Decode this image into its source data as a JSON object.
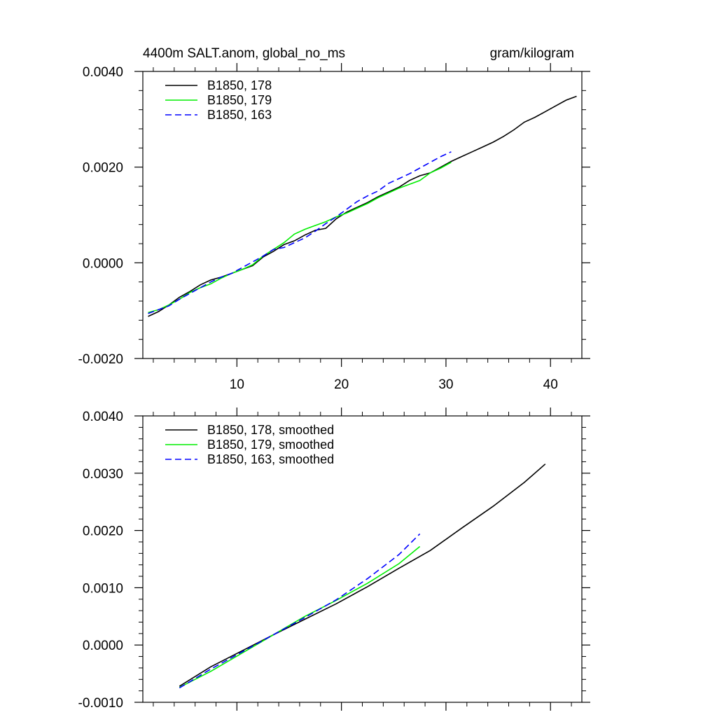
{
  "title": "4400m SALT.anom, global_no_ms",
  "units": "gram/kilogram",
  "colors": {
    "s178": "#000000",
    "s179": "#00ee00",
    "s163": "#0000ff"
  },
  "chart_data": [
    {
      "type": "line",
      "title": "4400m SALT.anom, global_no_ms",
      "units": "gram/kilogram",
      "xlim": [
        1,
        43
      ],
      "ylim": [
        -0.002,
        0.004
      ],
      "xticks": [
        10,
        20,
        30,
        40
      ],
      "xtick_labels": [
        "10",
        "20",
        "30",
        "40"
      ],
      "yticks": [
        -0.002,
        0.0,
        0.002,
        0.004
      ],
      "ytick_labels": [
        "-0.0020",
        "0.0000",
        "0.0020",
        "0.0040"
      ],
      "grid": false,
      "legend_position": "top-left",
      "series": [
        {
          "name": "B1850, 178",
          "color": "#000000",
          "dash": "solid",
          "x": [
            1.5,
            2.5,
            3.5,
            4.5,
            5.5,
            6.5,
            7.5,
            8.5,
            9.5,
            10.5,
            11.5,
            12.5,
            13.5,
            14.5,
            15.5,
            16.5,
            17.5,
            18.5,
            19.5,
            20.5,
            21.5,
            22.5,
            23.5,
            24.5,
            25.5,
            26.5,
            27.5,
            28.5,
            29.5,
            30.5,
            31.5,
            32.5,
            33.5,
            34.5,
            35.5,
            36.5,
            37.5,
            38.5,
            39.5,
            40.5,
            41.5,
            42.5
          ],
          "y": [
            -0.00112,
            -0.00102,
            -0.00088,
            -0.00072,
            -0.0006,
            -0.00046,
            -0.00036,
            -0.0003,
            -0.00022,
            -0.00014,
            -6e-05,
            0.00012,
            0.00024,
            0.00038,
            0.00046,
            0.00058,
            0.00068,
            0.00072,
            0.00092,
            0.00106,
            0.00116,
            0.00126,
            0.00138,
            0.00148,
            0.00158,
            0.00172,
            0.00182,
            0.00188,
            0.002,
            0.00212,
            0.00222,
            0.00232,
            0.00242,
            0.00252,
            0.00264,
            0.00278,
            0.00294,
            0.00304,
            0.00316,
            0.00328,
            0.0034,
            0.00348
          ]
        },
        {
          "name": "B1850, 179",
          "color": "#00ee00",
          "dash": "solid",
          "x": [
            1.5,
            2.5,
            3.5,
            4.5,
            5.5,
            6.5,
            7.5,
            8.5,
            9.5,
            10.5,
            11.5,
            12.5,
            13.5,
            14.5,
            15.5,
            16.5,
            17.5,
            18.5,
            19.5,
            20.5,
            21.5,
            22.5,
            23.5,
            24.5,
            25.5,
            26.5,
            27.5,
            28.5,
            29.5,
            30.5
          ],
          "y": [
            -0.00104,
            -0.00098,
            -0.00088,
            -0.00076,
            -0.00062,
            -0.00052,
            -0.00044,
            -0.00032,
            -0.00022,
            -0.00014,
            -4e-05,
            0.00014,
            0.00028,
            0.00042,
            0.0006,
            0.0007,
            0.00078,
            0.00086,
            0.00096,
            0.00104,
            0.00114,
            0.00124,
            0.00136,
            0.00146,
            0.00156,
            0.00164,
            0.00172,
            0.00188,
            0.00198,
            0.0021
          ]
        },
        {
          "name": "B1850, 163",
          "color": "#0000ff",
          "dash": "dashed",
          "x": [
            1.5,
            2.5,
            3.5,
            4.5,
            5.5,
            6.5,
            7.5,
            8.5,
            9.5,
            10.5,
            11.5,
            12.5,
            13.5,
            14.5,
            15.5,
            16.5,
            17.5,
            18.5,
            19.5,
            20.5,
            21.5,
            22.5,
            23.5,
            24.5,
            25.5,
            26.5,
            27.5,
            28.5,
            29.5,
            30.5
          ],
          "y": [
            -0.00106,
            -0.00098,
            -0.0009,
            -0.00076,
            -0.00064,
            -0.00052,
            -0.0004,
            -0.0003,
            -0.00022,
            -0.0001,
            2e-05,
            0.00014,
            0.00028,
            0.00032,
            0.00042,
            0.00052,
            0.00066,
            0.00082,
            0.00096,
            0.00112,
            0.00128,
            0.0014,
            0.0015,
            0.00166,
            0.00176,
            0.00186,
            0.00198,
            0.0021,
            0.00222,
            0.00232
          ]
        }
      ]
    },
    {
      "type": "line",
      "xlim": [
        1,
        43
      ],
      "ylim": [
        -0.001,
        0.004
      ],
      "xticks": [
        10,
        20,
        30,
        40
      ],
      "xtick_labels": [],
      "yticks": [
        -0.001,
        0.0,
        0.001,
        0.002,
        0.003,
        0.004
      ],
      "ytick_labels": [
        "-0.0010",
        "0.0000",
        "0.0010",
        "0.0020",
        "0.0030",
        "0.0040"
      ],
      "grid": false,
      "legend_position": "top-left",
      "series": [
        {
          "name": "B1850, 178, smoothed",
          "color": "#000000",
          "dash": "solid",
          "x": [
            4.5,
            7.5,
            10.5,
            13.5,
            16.5,
            19.5,
            22.5,
            25.5,
            28.5,
            31.5,
            34.5,
            37.5,
            39.5
          ],
          "y": [
            -0.00072,
            -0.00038,
            -0.0001,
            0.00018,
            0.00045,
            0.00072,
            0.00102,
            0.00134,
            0.00165,
            0.00204,
            0.00242,
            0.00284,
            0.00316
          ]
        },
        {
          "name": "B1850, 179, smoothed",
          "color": "#00ee00",
          "dash": "solid",
          "x": [
            4.5,
            7.5,
            10.5,
            13.5,
            16.5,
            19.5,
            22.5,
            25.5,
            27.5
          ],
          "y": [
            -0.00074,
            -0.00046,
            -0.00014,
            0.00018,
            0.0005,
            0.00078,
            0.00108,
            0.00142,
            0.00172
          ]
        },
        {
          "name": "B1850, 163, smoothed",
          "color": "#0000ff",
          "dash": "dashed",
          "x": [
            4.5,
            7.5,
            10.5,
            13.5,
            16.5,
            19.5,
            22.5,
            25.5,
            27.5
          ],
          "y": [
            -0.00075,
            -0.00042,
            -0.00012,
            0.00018,
            0.00048,
            0.00079,
            0.00116,
            0.00158,
            0.00194
          ]
        }
      ]
    }
  ]
}
